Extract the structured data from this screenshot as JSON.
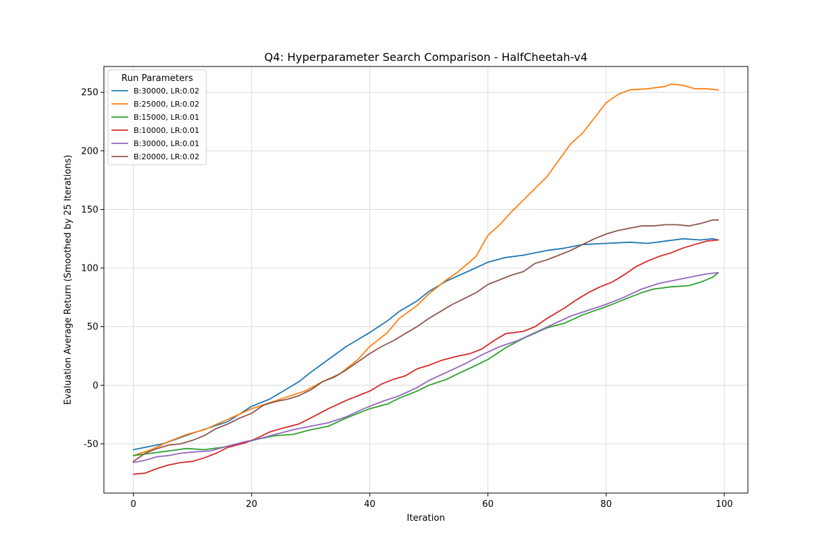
{
  "chart_data": {
    "type": "line",
    "title": "Q4: Hyperparameter Search Comparison - HalfCheetah-v4",
    "xlabel": "Iteration",
    "ylabel": "Evaluation Average Return (Smoothed by 25 Iterations)",
    "xlim": [
      -5,
      104
    ],
    "ylim": [
      -92,
      272
    ],
    "xticks": [
      0,
      20,
      40,
      60,
      80,
      100
    ],
    "yticks": [
      -50,
      0,
      50,
      100,
      150,
      200,
      250
    ],
    "grid": true,
    "legend": {
      "title": "Run Parameters",
      "position": "upper left"
    },
    "series": [
      {
        "name": "B:30000, LR:0.02",
        "color": "#1f77b4",
        "points": [
          [
            0,
            -55
          ],
          [
            5,
            -50
          ],
          [
            10,
            -41
          ],
          [
            13,
            -36
          ],
          [
            16,
            -31
          ],
          [
            20,
            -18
          ],
          [
            23,
            -12
          ],
          [
            25,
            -6
          ],
          [
            28,
            3
          ],
          [
            30,
            11
          ],
          [
            33,
            22
          ],
          [
            36,
            33
          ],
          [
            40,
            45
          ],
          [
            43,
            55
          ],
          [
            45,
            63
          ],
          [
            48,
            72
          ],
          [
            50,
            80
          ],
          [
            53,
            89
          ],
          [
            57,
            98
          ],
          [
            60,
            105
          ],
          [
            63,
            109
          ],
          [
            66,
            111
          ],
          [
            70,
            115
          ],
          [
            73,
            117
          ],
          [
            76,
            120
          ],
          [
            80,
            121
          ],
          [
            84,
            122
          ],
          [
            87,
            121
          ],
          [
            90,
            123
          ],
          [
            93,
            125
          ],
          [
            96,
            124
          ],
          [
            98,
            125
          ],
          [
            99,
            124
          ]
        ]
      },
      {
        "name": "B:25000, LR:0.02",
        "color": "#ff7f0e",
        "points": [
          [
            0,
            -60
          ],
          [
            3,
            -55
          ],
          [
            6,
            -48
          ],
          [
            9,
            -42
          ],
          [
            12,
            -38
          ],
          [
            16,
            -29
          ],
          [
            20,
            -20
          ],
          [
            23,
            -15
          ],
          [
            26,
            -10
          ],
          [
            29,
            -5
          ],
          [
            32,
            3
          ],
          [
            35,
            10
          ],
          [
            38,
            22
          ],
          [
            40,
            33
          ],
          [
            43,
            45
          ],
          [
            45,
            57
          ],
          [
            48,
            68
          ],
          [
            50,
            78
          ],
          [
            53,
            90
          ],
          [
            55,
            97
          ],
          [
            58,
            110
          ],
          [
            60,
            128
          ],
          [
            62,
            137
          ],
          [
            64,
            148
          ],
          [
            66,
            158
          ],
          [
            68,
            168
          ],
          [
            70,
            178
          ],
          [
            72,
            192
          ],
          [
            74,
            206
          ],
          [
            76,
            215
          ],
          [
            78,
            228
          ],
          [
            80,
            241
          ],
          [
            82,
            248
          ],
          [
            84,
            252
          ],
          [
            87,
            253
          ],
          [
            90,
            255
          ],
          [
            91,
            257
          ],
          [
            93,
            256
          ],
          [
            95,
            253
          ],
          [
            97,
            253
          ],
          [
            99,
            252
          ]
        ]
      },
      {
        "name": "B:15000, LR:0.01",
        "color": "#2ca02c",
        "points": [
          [
            0,
            -60
          ],
          [
            3,
            -58
          ],
          [
            6,
            -56
          ],
          [
            9,
            -54
          ],
          [
            12,
            -55
          ],
          [
            15,
            -53
          ],
          [
            18,
            -50
          ],
          [
            21,
            -46
          ],
          [
            24,
            -43
          ],
          [
            27,
            -42
          ],
          [
            30,
            -38
          ],
          [
            33,
            -35
          ],
          [
            36,
            -28
          ],
          [
            38,
            -24
          ],
          [
            40,
            -20
          ],
          [
            43,
            -16
          ],
          [
            45,
            -11
          ],
          [
            48,
            -5
          ],
          [
            50,
            0
          ],
          [
            53,
            5
          ],
          [
            55,
            10
          ],
          [
            58,
            17
          ],
          [
            60,
            22
          ],
          [
            63,
            32
          ],
          [
            66,
            40
          ],
          [
            70,
            49
          ],
          [
            73,
            53
          ],
          [
            76,
            60
          ],
          [
            80,
            67
          ],
          [
            83,
            73
          ],
          [
            86,
            79
          ],
          [
            88,
            82
          ],
          [
            91,
            84
          ],
          [
            94,
            85
          ],
          [
            96,
            88
          ],
          [
            98,
            92
          ],
          [
            99,
            96
          ]
        ]
      },
      {
        "name": "B:10000, LR:0.01",
        "color": "#d62728",
        "points": [
          [
            0,
            -76
          ],
          [
            2,
            -75
          ],
          [
            4,
            -71
          ],
          [
            6,
            -68
          ],
          [
            8,
            -66
          ],
          [
            10,
            -65
          ],
          [
            12,
            -62
          ],
          [
            14,
            -58
          ],
          [
            16,
            -53
          ],
          [
            19,
            -49
          ],
          [
            21,
            -45
          ],
          [
            23,
            -40
          ],
          [
            25,
            -37
          ],
          [
            28,
            -33
          ],
          [
            30,
            -28
          ],
          [
            33,
            -20
          ],
          [
            36,
            -13
          ],
          [
            38,
            -9
          ],
          [
            40,
            -5
          ],
          [
            42,
            1
          ],
          [
            44,
            5
          ],
          [
            46,
            8
          ],
          [
            48,
            14
          ],
          [
            50,
            17
          ],
          [
            52,
            21
          ],
          [
            55,
            25
          ],
          [
            57,
            27
          ],
          [
            59,
            31
          ],
          [
            61,
            38
          ],
          [
            63,
            44
          ],
          [
            66,
            46
          ],
          [
            68,
            50
          ],
          [
            70,
            57
          ],
          [
            73,
            66
          ],
          [
            75,
            73
          ],
          [
            77,
            79
          ],
          [
            79,
            84
          ],
          [
            81,
            88
          ],
          [
            83,
            94
          ],
          [
            85,
            101
          ],
          [
            87,
            106
          ],
          [
            89,
            110
          ],
          [
            91,
            113
          ],
          [
            93,
            117
          ],
          [
            95,
            120
          ],
          [
            97,
            123
          ],
          [
            99,
            124
          ]
        ]
      },
      {
        "name": "B:30000, LR:0.01",
        "color": "#9467bd",
        "points": [
          [
            0,
            -66
          ],
          [
            2,
            -64
          ],
          [
            4,
            -61
          ],
          [
            6,
            -60
          ],
          [
            8,
            -58
          ],
          [
            10,
            -57
          ],
          [
            13,
            -56
          ],
          [
            16,
            -52
          ],
          [
            19,
            -48
          ],
          [
            21,
            -46
          ],
          [
            24,
            -42
          ],
          [
            27,
            -38
          ],
          [
            30,
            -35
          ],
          [
            33,
            -32
          ],
          [
            36,
            -27
          ],
          [
            39,
            -20
          ],
          [
            42,
            -14
          ],
          [
            45,
            -9
          ],
          [
            48,
            -2
          ],
          [
            50,
            4
          ],
          [
            53,
            11
          ],
          [
            56,
            18
          ],
          [
            59,
            26
          ],
          [
            62,
            33
          ],
          [
            65,
            38
          ],
          [
            68,
            45
          ],
          [
            71,
            52
          ],
          [
            74,
            59
          ],
          [
            77,
            64
          ],
          [
            80,
            69
          ],
          [
            83,
            75
          ],
          [
            86,
            82
          ],
          [
            89,
            87
          ],
          [
            92,
            90
          ],
          [
            95,
            93
          ],
          [
            97,
            95
          ],
          [
            99,
            96
          ]
        ]
      },
      {
        "name": "B:20000, LR:0.02",
        "color": "#8c564b",
        "points": [
          [
            0,
            -65
          ],
          [
            2,
            -58
          ],
          [
            4,
            -54
          ],
          [
            6,
            -51
          ],
          [
            8,
            -50
          ],
          [
            10,
            -47
          ],
          [
            12,
            -43
          ],
          [
            14,
            -37
          ],
          [
            16,
            -33
          ],
          [
            18,
            -28
          ],
          [
            20,
            -24
          ],
          [
            22,
            -17
          ],
          [
            24,
            -14
          ],
          [
            26,
            -12
          ],
          [
            28,
            -9
          ],
          [
            30,
            -4
          ],
          [
            32,
            3
          ],
          [
            34,
            7
          ],
          [
            36,
            13
          ],
          [
            38,
            20
          ],
          [
            40,
            27
          ],
          [
            42,
            33
          ],
          [
            44,
            38
          ],
          [
            46,
            44
          ],
          [
            48,
            50
          ],
          [
            50,
            57
          ],
          [
            52,
            63
          ],
          [
            54,
            69
          ],
          [
            56,
            74
          ],
          [
            58,
            79
          ],
          [
            60,
            86
          ],
          [
            62,
            90
          ],
          [
            64,
            94
          ],
          [
            66,
            97
          ],
          [
            68,
            104
          ],
          [
            70,
            107
          ],
          [
            72,
            111
          ],
          [
            74,
            115
          ],
          [
            76,
            120
          ],
          [
            78,
            125
          ],
          [
            80,
            129
          ],
          [
            82,
            132
          ],
          [
            84,
            134
          ],
          [
            86,
            136
          ],
          [
            88,
            136
          ],
          [
            90,
            137
          ],
          [
            92,
            137
          ],
          [
            94,
            136
          ],
          [
            96,
            138
          ],
          [
            98,
            141
          ],
          [
            99,
            141
          ]
        ]
      }
    ]
  }
}
